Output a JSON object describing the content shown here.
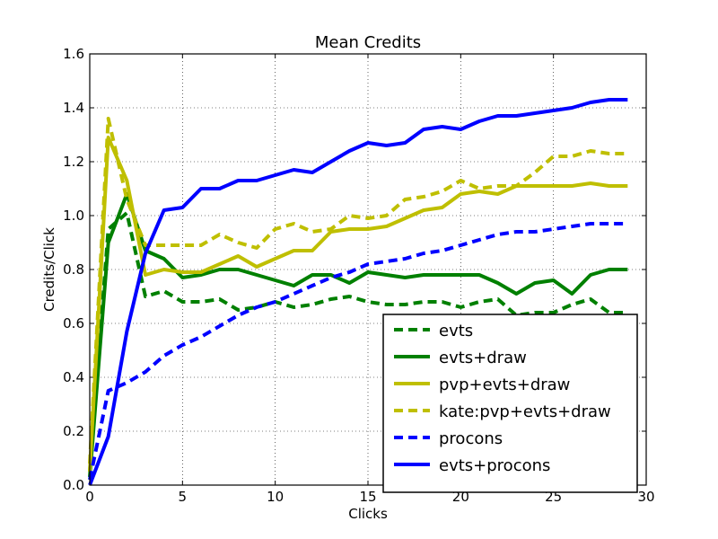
{
  "chart_data": {
    "type": "line",
    "title": "Mean Credits",
    "xlabel": "Clicks",
    "ylabel": "Credits/Click",
    "xlim": [
      0,
      30
    ],
    "ylim": [
      0.0,
      1.6
    ],
    "xticks": [
      "0",
      "5",
      "10",
      "15",
      "20",
      "25",
      "30"
    ],
    "yticks": [
      "0.0",
      "0.2",
      "0.4",
      "0.6",
      "0.8",
      "1.0",
      "1.2",
      "1.4",
      "1.6"
    ],
    "grid": true,
    "legend_position": "lower-right",
    "x": [
      0,
      1,
      2,
      3,
      4,
      5,
      6,
      7,
      8,
      9,
      10,
      11,
      12,
      13,
      14,
      15,
      16,
      17,
      18,
      19,
      20,
      21,
      22,
      23,
      24,
      25,
      26,
      27,
      28,
      29
    ],
    "series": [
      {
        "name": "evts",
        "color": "#008000",
        "dash": "dashed",
        "values": [
          0.05,
          0.95,
          1.01,
          0.7,
          0.72,
          0.68,
          0.68,
          0.69,
          0.65,
          0.66,
          0.68,
          0.66,
          0.67,
          0.69,
          0.7,
          0.68,
          0.67,
          0.67,
          0.68,
          0.68,
          0.66,
          0.68,
          0.69,
          0.63,
          0.64,
          0.64,
          0.67,
          0.69,
          0.64,
          0.64
        ]
      },
      {
        "name": "evts+draw",
        "color": "#008000",
        "dash": "solid",
        "values": [
          0.03,
          0.9,
          1.08,
          0.87,
          0.84,
          0.77,
          0.78,
          0.8,
          0.8,
          0.78,
          0.76,
          0.74,
          0.78,
          0.78,
          0.75,
          0.79,
          0.78,
          0.77,
          0.78,
          0.78,
          0.78,
          0.78,
          0.75,
          0.71,
          0.75,
          0.76,
          0.71,
          0.78,
          0.8,
          0.8
        ]
      },
      {
        "name": "pvp+evts+draw",
        "color": "#BFBF00",
        "dash": "solid",
        "values": [
          0.05,
          1.29,
          1.13,
          0.78,
          0.8,
          0.79,
          0.79,
          0.82,
          0.85,
          0.81,
          0.84,
          0.87,
          0.87,
          0.94,
          0.95,
          0.95,
          0.96,
          0.99,
          1.02,
          1.03,
          1.08,
          1.09,
          1.08,
          1.11,
          1.11,
          1.11,
          1.11,
          1.12,
          1.11,
          1.11
        ]
      },
      {
        "name": "kate:pvp+evts+draw",
        "color": "#BFBF00",
        "dash": "dashed",
        "values": [
          0.08,
          1.36,
          1.06,
          0.89,
          0.89,
          0.89,
          0.89,
          0.93,
          0.9,
          0.88,
          0.95,
          0.97,
          0.94,
          0.95,
          1.0,
          0.99,
          1.0,
          1.06,
          1.07,
          1.09,
          1.13,
          1.1,
          1.11,
          1.11,
          1.16,
          1.22,
          1.22,
          1.24,
          1.23,
          1.23
        ]
      },
      {
        "name": "procons",
        "color": "#0000FF",
        "dash": "dashed",
        "values": [
          0.02,
          0.35,
          0.38,
          0.42,
          0.48,
          0.52,
          0.55,
          0.59,
          0.63,
          0.66,
          0.68,
          0.71,
          0.74,
          0.77,
          0.79,
          0.82,
          0.83,
          0.84,
          0.86,
          0.87,
          0.89,
          0.91,
          0.93,
          0.94,
          0.94,
          0.95,
          0.96,
          0.97,
          0.97,
          0.97
        ]
      },
      {
        "name": "evts+procons",
        "color": "#0000FF",
        "dash": "solid",
        "values": [
          0.0,
          0.18,
          0.57,
          0.86,
          1.02,
          1.03,
          1.1,
          1.1,
          1.13,
          1.13,
          1.15,
          1.17,
          1.16,
          1.2,
          1.24,
          1.27,
          1.26,
          1.27,
          1.32,
          1.33,
          1.32,
          1.35,
          1.37,
          1.37,
          1.38,
          1.39,
          1.4,
          1.42,
          1.43,
          1.43
        ]
      }
    ]
  }
}
